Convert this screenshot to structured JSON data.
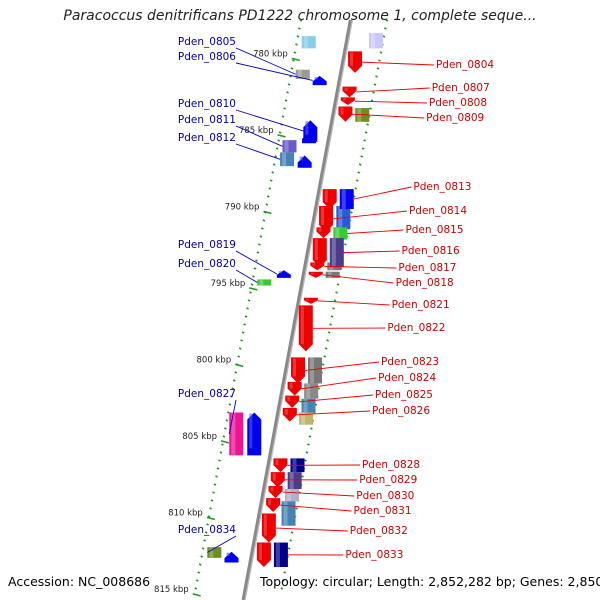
{
  "title": "Paracoccus denitrificans PD1222 chromosome 1, complete seque...",
  "footer": {
    "accession": "Accession: NC_008686",
    "topology": "Topology: circular; Length: 2,852,282 bp; Genes: 2,850"
  },
  "colors": {
    "forward": "#0000ee",
    "reverse": "#ee0000",
    "tick": "#229922",
    "backbone": "#888888"
  },
  "kbp_ticks": [
    {
      "label": "780 kbp",
      "kbp": 780
    },
    {
      "label": "785 kbp",
      "kbp": 785
    },
    {
      "label": "790 kbp",
      "kbp": 790
    },
    {
      "label": "795 kbp",
      "kbp": 795
    },
    {
      "label": "800 kbp",
      "kbp": 800
    },
    {
      "label": "805 kbp",
      "kbp": 805
    },
    {
      "label": "810 kbp",
      "kbp": 810
    },
    {
      "label": "815 kbp",
      "kbp": 815
    }
  ],
  "left_genes": [
    {
      "id": "Pden_0805",
      "kbp": 781.4,
      "len": 0.6,
      "color": "#999999",
      "shape": "box"
    },
    {
      "id": "Pden_0806",
      "kbp": 781.8,
      "len": 0.6,
      "color": "#0000ee",
      "shape": "arrow"
    },
    {
      "id": "Pden_0810",
      "kbp": 784.7,
      "len": 1.4,
      "color": "#0000ee",
      "shape": "arrow"
    },
    {
      "id": "Pden_0811",
      "kbp": 786.0,
      "len": 0.8,
      "color": "#6a5acd",
      "shape": "box"
    },
    {
      "id": "Pden_0812",
      "kbp": 786.8,
      "len": 0.9,
      "color": "#4682b4",
      "shape": "box"
    },
    {
      "id": "Pden_0819",
      "kbp": 794.5,
      "len": 0.5,
      "color": "#0000ee",
      "shape": "arrow"
    },
    {
      "id": "Pden_0820",
      "kbp": 795.1,
      "len": 0.4,
      "color": "#33cc33",
      "shape": "box"
    },
    {
      "id": "Pden_0827",
      "kbp": 803.8,
      "len": 2.8,
      "color": "#ee1493",
      "shape": "box"
    },
    {
      "id": "Pden_0834",
      "kbp": 812.6,
      "len": 0.7,
      "color": "#6b8e23",
      "shape": "box"
    }
  ],
  "left_extra": [
    {
      "kbp": 779.2,
      "len": 0.8,
      "color": "#87ceeb",
      "shape": "box"
    },
    {
      "kbp": 785.5,
      "len": 0.7,
      "color": "#0000ee",
      "shape": "arrow"
    },
    {
      "kbp": 787.0,
      "len": 0.8,
      "color": "#0000ee",
      "shape": "arrow"
    },
    {
      "kbp": 803.8,
      "len": 2.8,
      "color": "#0000ee",
      "shape": "arrow"
    },
    {
      "kbp": 812.9,
      "len": 0.7,
      "color": "#0000ee",
      "shape": "arrow"
    }
  ],
  "right_genes": [
    {
      "id": "Pden_0804",
      "kbp": 780.2,
      "len": 1.4,
      "color": "#ee0000",
      "shape": "arrow"
    },
    {
      "id": "Pden_0807",
      "kbp": 782.5,
      "len": 0.7,
      "color": "#ee0000",
      "shape": "arrow"
    },
    {
      "id": "Pden_0808",
      "kbp": 783.2,
      "len": 0.5,
      "color": "#ee0000",
      "shape": "arrow"
    },
    {
      "id": "Pden_0809",
      "kbp": 783.8,
      "len": 1.0,
      "color": "#ee0000",
      "shape": "arrow"
    },
    {
      "id": "Pden_0813",
      "kbp": 789.2,
      "len": 1.3,
      "color": "#0000ee",
      "shape": "box"
    },
    {
      "id": "Pden_0814",
      "kbp": 790.3,
      "len": 1.7,
      "color": "#ee0000",
      "shape": "arrow"
    },
    {
      "id": "Pden_0815",
      "kbp": 791.7,
      "len": 0.8,
      "color": "#33cc33",
      "shape": "box"
    },
    {
      "id": "Pden_0816",
      "kbp": 792.4,
      "len": 1.9,
      "color": "#483d8b",
      "shape": "box"
    },
    {
      "id": "Pden_0817",
      "kbp": 794.0,
      "len": 0.5,
      "color": "#ee0000",
      "shape": "arrow"
    },
    {
      "id": "Pden_0818",
      "kbp": 794.6,
      "len": 0.4,
      "color": "#ee0000",
      "shape": "arrow"
    },
    {
      "id": "Pden_0821",
      "kbp": 796.3,
      "len": 0.4,
      "color": "#ee0000",
      "shape": "arrow"
    },
    {
      "id": "Pden_0822",
      "kbp": 796.8,
      "len": 3.0,
      "color": "#ee0000",
      "shape": "arrow"
    },
    {
      "id": "Pden_0823",
      "kbp": 800.2,
      "len": 1.7,
      "color": "#ee0000",
      "shape": "arrow"
    },
    {
      "id": "Pden_0824",
      "kbp": 801.8,
      "len": 0.9,
      "color": "#ee0000",
      "shape": "arrow"
    },
    {
      "id": "Pden_0825",
      "kbp": 802.7,
      "len": 0.8,
      "color": "#ee0000",
      "shape": "arrow"
    },
    {
      "id": "Pden_0826",
      "kbp": 803.5,
      "len": 0.9,
      "color": "#ee0000",
      "shape": "arrow"
    },
    {
      "id": "Pden_0828",
      "kbp": 806.8,
      "len": 0.9,
      "color": "#ee0000",
      "shape": "arrow"
    },
    {
      "id": "Pden_0829",
      "kbp": 807.7,
      "len": 1.0,
      "color": "#ee0000",
      "shape": "arrow"
    },
    {
      "id": "Pden_0830",
      "kbp": 808.6,
      "len": 0.8,
      "color": "#ee0000",
      "shape": "arrow"
    },
    {
      "id": "Pden_0831",
      "kbp": 809.4,
      "len": 0.9,
      "color": "#ee0000",
      "shape": "arrow"
    },
    {
      "id": "Pden_0832",
      "kbp": 810.4,
      "len": 1.9,
      "color": "#ee0000",
      "shape": "arrow"
    },
    {
      "id": "Pden_0833",
      "kbp": 812.3,
      "len": 1.6,
      "color": "#00008b",
      "shape": "box"
    }
  ],
  "right_extra": [
    {
      "kbp": 779.0,
      "len": 1.0,
      "color": "#c8c8ff",
      "shape": "box"
    },
    {
      "kbp": 783.9,
      "len": 0.9,
      "color": "#6b8e23",
      "shape": "box"
    },
    {
      "kbp": 789.2,
      "len": 1.3,
      "color": "#ee0000",
      "shape": "arrow"
    },
    {
      "kbp": 790.3,
      "len": 1.5,
      "color": "#2a5bd7",
      "shape": "box"
    },
    {
      "kbp": 791.7,
      "len": 0.7,
      "color": "#ee0000",
      "shape": "arrow"
    },
    {
      "kbp": 792.4,
      "len": 1.9,
      "color": "#ee0000",
      "shape": "arrow"
    },
    {
      "kbp": 794.0,
      "len": 0.5,
      "color": "#777777",
      "shape": "box"
    },
    {
      "kbp": 794.6,
      "len": 0.4,
      "color": "#777777",
      "shape": "box"
    },
    {
      "kbp": 800.2,
      "len": 1.7,
      "color": "#777777",
      "shape": "box"
    },
    {
      "kbp": 801.9,
      "len": 1.0,
      "color": "#888888",
      "shape": "box"
    },
    {
      "kbp": 802.9,
      "len": 0.9,
      "color": "#4682b4",
      "shape": "box"
    },
    {
      "kbp": 803.8,
      "len": 0.8,
      "color": "#bdb76b",
      "shape": "box"
    },
    {
      "kbp": 806.8,
      "len": 0.9,
      "color": "#00008b",
      "shape": "box"
    },
    {
      "kbp": 807.7,
      "len": 1.1,
      "color": "#483d8b",
      "shape": "box"
    },
    {
      "kbp": 808.8,
      "len": 0.8,
      "color": "#b0b0c8",
      "shape": "box"
    },
    {
      "kbp": 809.6,
      "len": 1.6,
      "color": "#4682b4",
      "shape": "box"
    },
    {
      "kbp": 812.3,
      "len": 1.6,
      "color": "#ee0000",
      "shape": "arrow"
    }
  ]
}
